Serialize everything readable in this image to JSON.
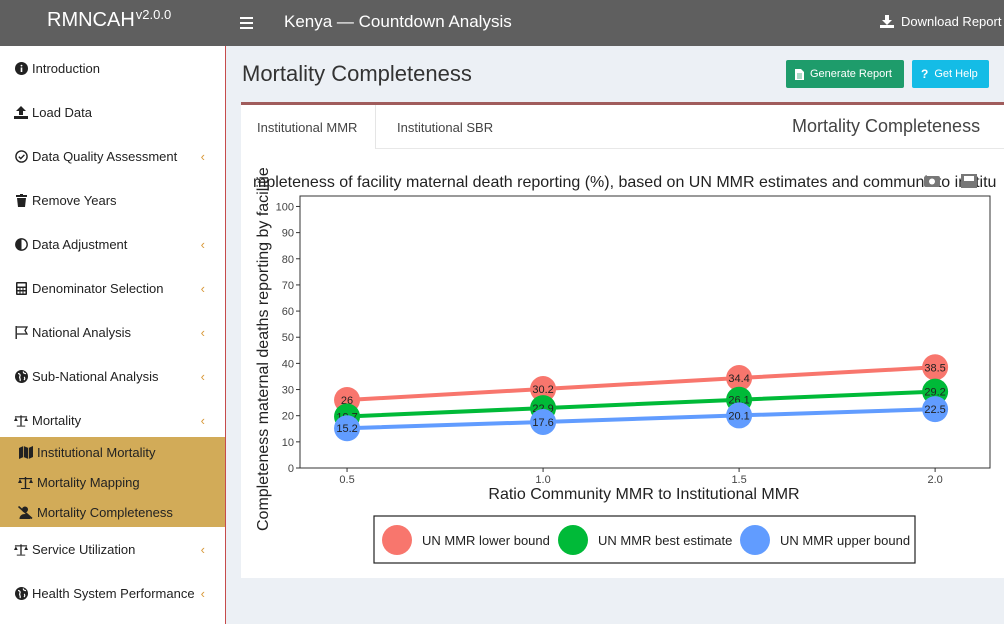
{
  "header": {
    "logo": "RMNCAH",
    "version": "v2.0.0",
    "title": "Kenya — Countdown Analysis",
    "download_label": "Download Report"
  },
  "sidebar": {
    "items": [
      {
        "label": "Introduction",
        "icon": "info-icon",
        "chevron": false
      },
      {
        "label": "Load Data",
        "icon": "upload-icon",
        "chevron": false
      },
      {
        "label": "Data Quality Assessment",
        "icon": "check-circle-icon",
        "chevron": true
      },
      {
        "label": "Remove Years",
        "icon": "trash-icon",
        "chevron": false
      },
      {
        "label": "Data Adjustment",
        "icon": "adjust-icon",
        "chevron": true
      },
      {
        "label": "Denominator Selection",
        "icon": "calculator-icon",
        "chevron": true
      },
      {
        "label": "National Analysis",
        "icon": "flag-icon",
        "chevron": true
      },
      {
        "label": "Sub-National Analysis",
        "icon": "globe-icon",
        "chevron": true
      },
      {
        "label": "Mortality",
        "icon": "balance-icon",
        "chevron": true
      },
      {
        "label": "Service Utilization",
        "icon": "balance-icon",
        "chevron": true
      },
      {
        "label": "Health System Performance",
        "icon": "globe-icon",
        "chevron": true
      }
    ],
    "submenu": [
      {
        "label": "Institutional Mortality",
        "icon": "map-icon"
      },
      {
        "label": "Mortality Mapping",
        "icon": "balance-icon"
      },
      {
        "label": "Mortality Completeness",
        "icon": "user-slash-icon"
      }
    ],
    "chevron_glyph": "‹"
  },
  "content": {
    "title": "Mortality Completeness",
    "generate_label": "Generate Report",
    "help_label": "Get Help",
    "tabs": [
      "Institutional MMR",
      "Institutional SBR"
    ],
    "box_title": "Mortality Completeness"
  },
  "chart_data": {
    "type": "line",
    "title": "Completeness of facility maternal death reporting (%), based on UN MMR estimates and community to institutional",
    "title_visible": "mpleteness of facility maternal death reporting (%), based on UN MMR estimates and communit to institu",
    "xlabel": "Ratio Community MMR to Institutional MMR",
    "ylabel": "Completeness maternal deaths reporting by facilities",
    "ylabel_visible": "Completeness maternal deaths reporting by facilitie",
    "x": [
      0.5,
      1.0,
      1.5,
      2.0
    ],
    "x_tick_labels": [
      "0.5",
      "1.0",
      "1.5",
      "2.0"
    ],
    "xlim": [
      0.38,
      2.14
    ],
    "ylim": [
      0,
      104
    ],
    "y_ticks": [
      0,
      10,
      20,
      30,
      40,
      50,
      60,
      70,
      80,
      90,
      100
    ],
    "legend_position": "bottom",
    "series": [
      {
        "name": "UN MMR lower bound",
        "color": "#f8766d",
        "values": [
          26,
          30.2,
          34.4,
          38.5
        ],
        "labels": [
          "26",
          "30.2",
          "34.4",
          "38.5"
        ]
      },
      {
        "name": "UN MMR best estimate",
        "color": "#00ba38",
        "values": [
          19.7,
          22.9,
          26.1,
          29.2
        ],
        "labels": [
          "19.7",
          "22.9",
          "26.1",
          "29.2"
        ]
      },
      {
        "name": "UN MMR upper bound",
        "color": "#619cff",
        "values": [
          15.2,
          17.6,
          20.1,
          22.5
        ],
        "labels": [
          "15.2",
          "17.6",
          "20.1",
          "22.5"
        ]
      }
    ]
  }
}
